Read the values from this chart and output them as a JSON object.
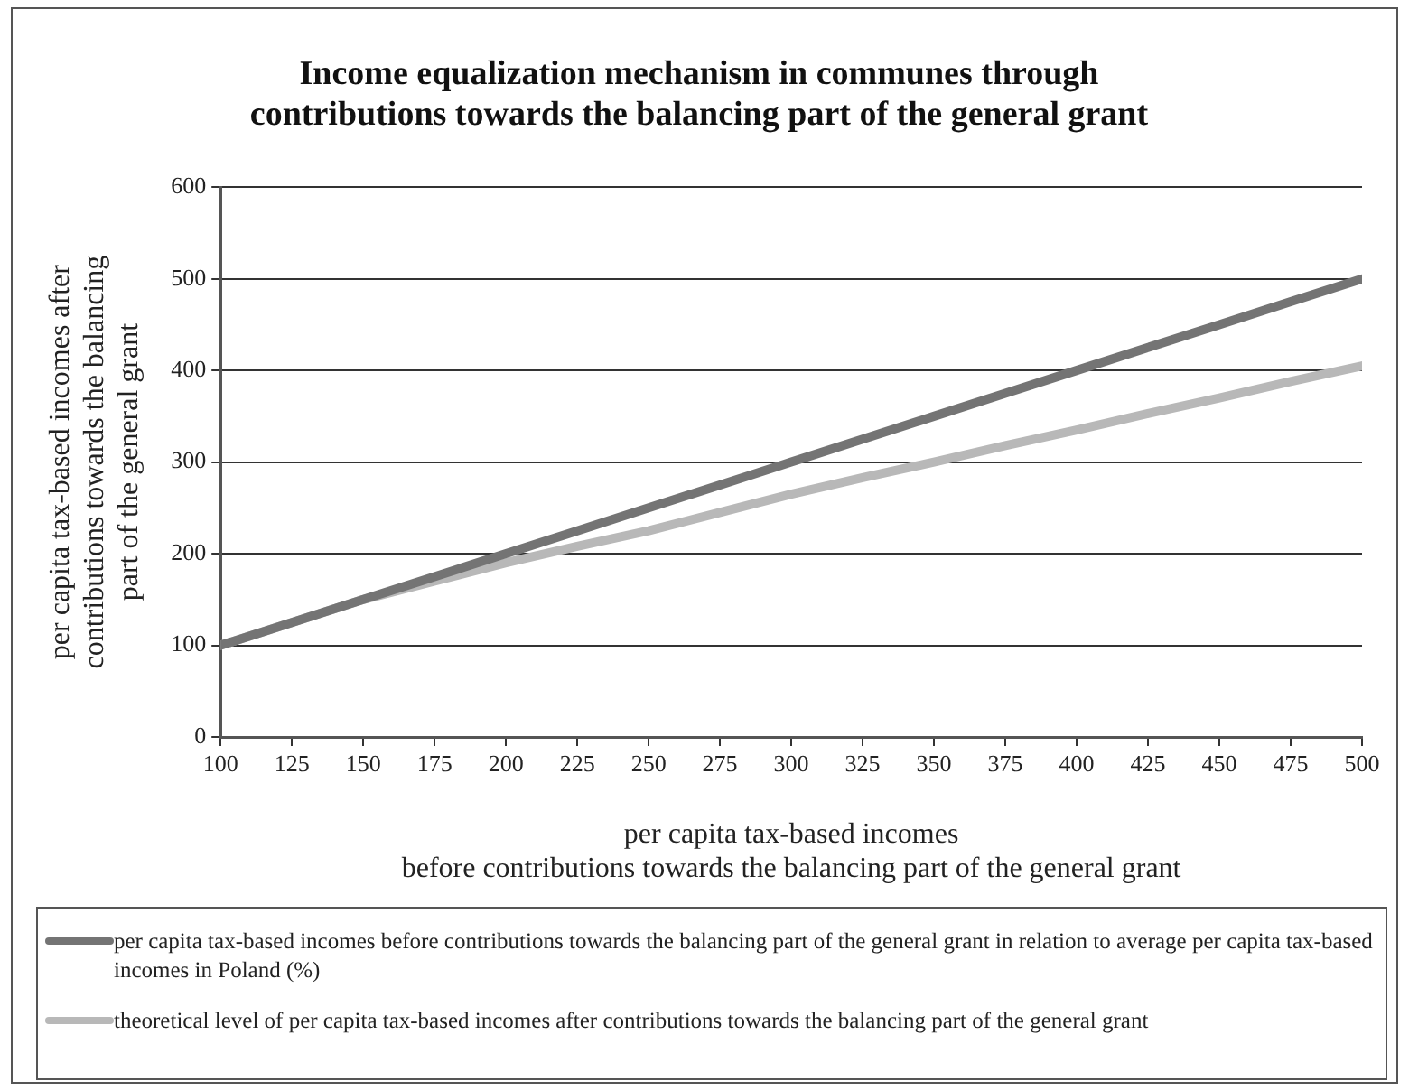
{
  "chart_data": {
    "type": "line",
    "title": "Income equalization mechanism in communes through\ncontributions towards the balancing part of the general grant",
    "xlabel": "per capita tax-based incomes\nbefore contributions towards the balancing part of the general grant",
    "ylabel": "per capita tax-based incomes after\ncontributions towards the balancing\npart of the general grant",
    "x": [
      100,
      125,
      150,
      175,
      200,
      225,
      250,
      275,
      300,
      325,
      350,
      375,
      400,
      425,
      450,
      475,
      500
    ],
    "series": [
      {
        "name": "per capita tax-based incomes before contributions towards the balancing part of the general grant in relation to average per capita tax-based incomes in Poland (%)",
        "color": "#747474",
        "values": [
          100,
          125,
          150,
          175,
          200,
          225,
          250,
          275,
          300,
          325,
          350,
          375,
          400,
          425,
          450,
          475,
          500
        ]
      },
      {
        "name": "theoretical level of per capita tax-based incomes after contributions towards the balancing part of the general grant",
        "color": "#b8b8b8",
        "values": [
          100,
          125,
          150,
          170,
          190,
          208,
          225,
          245,
          265,
          283,
          300,
          318,
          335,
          353,
          370,
          388,
          405
        ]
      }
    ],
    "xlim": [
      100,
      500
    ],
    "xticks": [
      100,
      125,
      150,
      175,
      200,
      225,
      250,
      275,
      300,
      325,
      350,
      375,
      400,
      425,
      450,
      475,
      500
    ],
    "ylim": [
      0,
      600
    ],
    "yticks": [
      0,
      100,
      200,
      300,
      400,
      500,
      600
    ],
    "grid": "y",
    "legend": "bottom",
    "marker": "none",
    "line_style": "solid"
  }
}
